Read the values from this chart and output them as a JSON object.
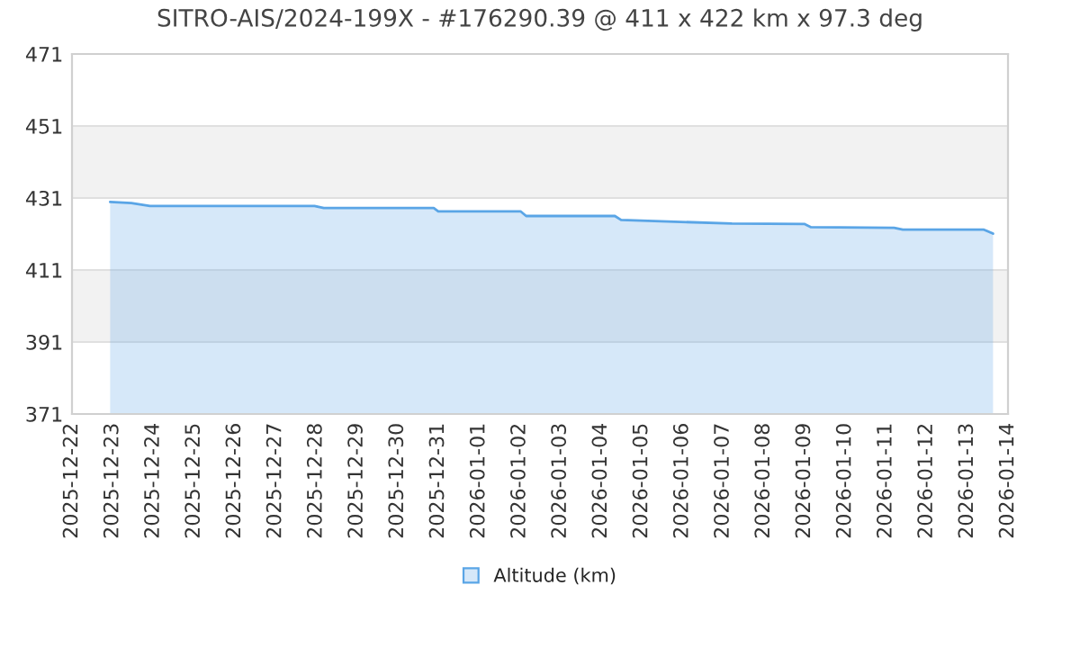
{
  "chart_data": {
    "type": "area",
    "title": "SITRO-AIS/2024-199X - #176290.39 @ 411 x 422 km x 97.3 deg",
    "x": [
      "2025-12-22T22:30",
      "2025-12-23T11:00",
      "2025-12-23T22:00",
      "2025-12-27T23:00",
      "2025-12-28T04:30",
      "2025-12-30T21:20",
      "2025-12-31T00:00",
      "2026-01-02T00:30",
      "2026-01-02T03:50",
      "2026-01-04T08:10",
      "2026-01-04T11:50",
      "2026-01-07T05:10",
      "2026-01-08T23:50",
      "2026-01-09T03:50",
      "2026-01-11T04:50",
      "2026-01-11T10:00",
      "2026-01-13T09:50",
      "2026-01-13T15:10"
    ],
    "series": [
      {
        "name": "Altitude (km)",
        "color": "#5aa5e6",
        "values": [
          429.9,
          429.6,
          428.8,
          428.8,
          428.2,
          428.2,
          427.3,
          427.3,
          426.0,
          426.0,
          424.9,
          423.9,
          423.8,
          422.9,
          422.7,
          422.2,
          422.2,
          421.1
        ]
      }
    ],
    "xlim": [
      "2025-12-22",
      "2026-01-14"
    ],
    "xticks": [
      "2025-12-22",
      "2025-12-23",
      "2025-12-24",
      "2025-12-25",
      "2025-12-26",
      "2025-12-27",
      "2025-12-28",
      "2025-12-29",
      "2025-12-30",
      "2025-12-31",
      "2026-01-01",
      "2026-01-02",
      "2026-01-03",
      "2026-01-04",
      "2026-01-05",
      "2026-01-06",
      "2026-01-07",
      "2026-01-08",
      "2026-01-09",
      "2026-01-10",
      "2026-01-11",
      "2026-01-12",
      "2026-01-13",
      "2026-01-14"
    ],
    "ylim": [
      371,
      471
    ],
    "yticks": [
      371,
      391,
      411,
      431,
      451,
      471
    ],
    "bands": [
      {
        "axis": "y",
        "from": 391,
        "to": 411,
        "color": "#f2f2f2"
      },
      {
        "axis": "y",
        "from": 431,
        "to": 451,
        "color": "#f2f2f2"
      }
    ],
    "grid": "y",
    "legend": "bottom",
    "marker": "none",
    "line_style": "solid"
  }
}
